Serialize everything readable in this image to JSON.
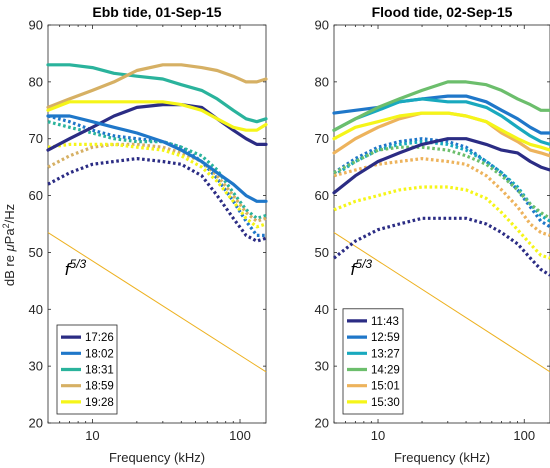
{
  "figure": {
    "y_axis_label_prefix": "dB re ",
    "y_axis_label_mu": "μ",
    "y_axis_label_pa": "Pa",
    "y_axis_label_sup": "2",
    "y_axis_label_suffix": "/Hz"
  },
  "chart_data": [
    {
      "type": "line",
      "title": "Ebb tide, 01-Sep-15",
      "xlabel": "Frequency (kHz)",
      "ylabel": "dB re μPa²/Hz",
      "xscale": "log",
      "xlim": [
        5,
        150
      ],
      "ylim": [
        20,
        90
      ],
      "xticks": [
        10,
        100
      ],
      "yticks": [
        20,
        30,
        40,
        50,
        60,
        70,
        80,
        90
      ],
      "grid": false,
      "legend_position": "bottom-left",
      "annotation": {
        "text": "f",
        "superscript": "5/3",
        "x": 6.5,
        "y": 46
      },
      "reference_line": {
        "color": "#EDB120",
        "x": [
          5,
          150
        ],
        "y": [
          53.5,
          29
        ]
      },
      "series": [
        {
          "name": "17:26",
          "color": "#2B2C84",
          "solid": {
            "x": [
              5,
              7,
              10,
              14,
              20,
              30,
              40,
              55,
              70,
              90,
              110,
              130,
              150
            ],
            "y": [
              68,
              70,
              72,
              74,
              75.5,
              76,
              76,
              75.5,
              73.5,
              71.5,
              70,
              69,
              69
            ]
          },
          "dotted": {
            "x": [
              5,
              7,
              10,
              14,
              20,
              30,
              40,
              55,
              70,
              90,
              110,
              130,
              150
            ],
            "y": [
              62,
              64,
              65.5,
              66,
              66.5,
              66,
              65.5,
              63.5,
              60,
              56,
              53,
              52,
              52.5
            ]
          }
        },
        {
          "name": "18:02",
          "color": "#1F77C9",
          "solid": {
            "x": [
              5,
              7,
              10,
              14,
              20,
              30,
              40,
              55,
              70,
              90,
              110,
              130,
              150
            ],
            "y": [
              74,
              74,
              73,
              72,
              71,
              69.5,
              68,
              66,
              64,
              62,
              60,
              59,
              59
            ]
          },
          "dotted": {
            "x": [
              5,
              7,
              10,
              14,
              20,
              30,
              40,
              55,
              70,
              90,
              110,
              130,
              150
            ],
            "y": [
              74,
              73,
              71.5,
              70.5,
              70,
              69.5,
              68.5,
              66,
              63,
              59,
              55.5,
              53,
              53
            ]
          }
        },
        {
          "name": "18:31",
          "color": "#2AB39C",
          "solid": {
            "x": [
              5,
              7,
              10,
              14,
              20,
              30,
              40,
              55,
              70,
              90,
              110,
              130,
              150
            ],
            "y": [
              83,
              83,
              82.5,
              81.5,
              81,
              80.5,
              79.5,
              78.5,
              77,
              75,
              73.5,
              73,
              73.5
            ]
          },
          "dotted": {
            "x": [
              5,
              7,
              10,
              14,
              20,
              30,
              40,
              55,
              70,
              90,
              110,
              130,
              150
            ],
            "y": [
              73,
              72,
              71,
              70,
              69.5,
              69.5,
              68.5,
              67,
              64.5,
              60.5,
              57.5,
              56,
              56.5
            ]
          }
        },
        {
          "name": "18:59",
          "color": "#D6B064",
          "solid": {
            "x": [
              5,
              7,
              10,
              14,
              20,
              30,
              40,
              55,
              70,
              90,
              110,
              130,
              150
            ],
            "y": [
              75.5,
              77,
              78.5,
              80,
              82,
              83,
              83,
              82.5,
              82,
              81,
              80,
              80,
              80.5
            ]
          },
          "dotted": {
            "x": [
              5,
              7,
              10,
              14,
              20,
              30,
              40,
              55,
              70,
              90,
              110,
              130,
              150
            ],
            "y": [
              65,
              67,
              68.5,
              69,
              69,
              68.5,
              67.5,
              66,
              63.5,
              60,
              57,
              55.5,
              56
            ]
          }
        },
        {
          "name": "19:28",
          "color": "#F5F519",
          "solid": {
            "x": [
              5,
              7,
              10,
              14,
              20,
              30,
              40,
              55,
              70,
              90,
              110,
              130,
              150
            ],
            "y": [
              75,
              76.5,
              76.5,
              76.5,
              76.5,
              76.5,
              76,
              75,
              73.5,
              72,
              71.5,
              71.5,
              72.5
            ]
          },
          "dotted": {
            "x": [
              5,
              7,
              10,
              14,
              20,
              30,
              40,
              55,
              70,
              90,
              110,
              130,
              150
            ],
            "y": [
              68.5,
              69,
              69,
              69,
              68.5,
              68,
              67,
              65,
              62.5,
              59,
              56,
              54.5,
              55
            ]
          }
        }
      ]
    },
    {
      "type": "line",
      "title": "Flood tide, 02-Sep-15",
      "xlabel": "Frequency (kHz)",
      "ylabel": "",
      "xscale": "log",
      "xlim": [
        5,
        150
      ],
      "ylim": [
        20,
        90
      ],
      "xticks": [
        10,
        100
      ],
      "yticks": [
        20,
        30,
        40,
        50,
        60,
        70,
        80,
        90
      ],
      "grid": false,
      "legend_position": "bottom-left",
      "annotation": {
        "text": "f",
        "superscript": "5/3",
        "x": 6.5,
        "y": 46
      },
      "reference_line": {
        "color": "#EDB120",
        "x": [
          5,
          150
        ],
        "y": [
          53.5,
          29
        ]
      },
      "series": [
        {
          "name": "11:43",
          "color": "#2B2C84",
          "solid": {
            "x": [
              5,
              7,
              10,
              14,
              20,
              30,
              40,
              55,
              70,
              90,
              110,
              130,
              150
            ],
            "y": [
              60.5,
              63.5,
              66,
              67.5,
              69,
              70,
              70,
              69,
              68,
              67.5,
              66,
              65,
              64.5
            ]
          },
          "dotted": {
            "x": [
              5,
              7,
              10,
              14,
              20,
              30,
              40,
              55,
              70,
              90,
              110,
              130,
              150
            ],
            "y": [
              49,
              52,
              54,
              55,
              56,
              56,
              56,
              55,
              53.5,
              51.5,
              49,
              47,
              46
            ]
          }
        },
        {
          "name": "12:59",
          "color": "#1F77C9",
          "solid": {
            "x": [
              5,
              7,
              10,
              14,
              20,
              30,
              40,
              55,
              70,
              90,
              110,
              130,
              150
            ],
            "y": [
              74.5,
              75,
              75.5,
              76.5,
              77,
              77.5,
              77.5,
              76.5,
              75,
              73.5,
              72,
              71,
              71
            ]
          },
          "dotted": {
            "x": [
              5,
              7,
              10,
              14,
              20,
              30,
              40,
              55,
              70,
              90,
              110,
              130,
              150
            ],
            "y": [
              64,
              66.5,
              68.5,
              69.5,
              70,
              69.5,
              68.5,
              66,
              64,
              61,
              58,
              55.5,
              54.5
            ]
          }
        },
        {
          "name": "13:27",
          "color": "#19A9BE",
          "solid": {
            "x": [
              5,
              7,
              10,
              14,
              20,
              30,
              40,
              55,
              70,
              90,
              110,
              130,
              150
            ],
            "y": [
              71.5,
              73.5,
              75,
              76.5,
              77,
              76.5,
              76.5,
              75.5,
              74,
              72,
              70.5,
              69.5,
              69
            ]
          },
          "dotted": {
            "x": [
              5,
              7,
              10,
              14,
              20,
              30,
              40,
              55,
              70,
              90,
              110,
              130,
              150
            ],
            "y": [
              63.5,
              66,
              68,
              69,
              69.5,
              69,
              68,
              66,
              64,
              61.5,
              58.5,
              56.5,
              55.5
            ]
          }
        },
        {
          "name": "14:29",
          "color": "#6CBE6C",
          "solid": {
            "x": [
              5,
              7,
              10,
              14,
              20,
              30,
              40,
              55,
              70,
              90,
              110,
              130,
              150
            ],
            "y": [
              71.5,
              73.5,
              75.5,
              77,
              78.5,
              80,
              80,
              79.5,
              78.5,
              77,
              76,
              75,
              75
            ]
          },
          "dotted": {
            "x": [
              5,
              7,
              10,
              14,
              20,
              30,
              40,
              55,
              70,
              90,
              110,
              130,
              150
            ],
            "y": [
              64,
              66,
              68,
              68.5,
              68.5,
              68,
              67,
              65.5,
              63.5,
              61,
              58.5,
              57,
              56
            ]
          }
        },
        {
          "name": "15:01",
          "color": "#EDB35C",
          "solid": {
            "x": [
              5,
              7,
              10,
              14,
              20,
              30,
              40,
              55,
              70,
              90,
              110,
              130,
              150
            ],
            "y": [
              67.5,
              70,
              72,
              73.5,
              74.5,
              74.5,
              74,
              73,
              71,
              69.5,
              68,
              67.5,
              67
            ]
          },
          "dotted": {
            "x": [
              5,
              7,
              10,
              14,
              20,
              30,
              40,
              55,
              70,
              90,
              110,
              130,
              150
            ],
            "y": [
              63.5,
              64.5,
              65.5,
              66,
              66.5,
              66,
              65.5,
              63.5,
              61,
              58,
              55,
              53.5,
              53
            ]
          }
        },
        {
          "name": "15:30",
          "color": "#F5F519",
          "solid": {
            "x": [
              5,
              7,
              10,
              14,
              20,
              30,
              40,
              55,
              70,
              90,
              110,
              130,
              150
            ],
            "y": [
              70,
              72,
              73,
              74,
              74.5,
              74.5,
              74,
              73,
              71.5,
              70,
              69,
              68.5,
              68
            ]
          },
          "dotted": {
            "x": [
              5,
              7,
              10,
              14,
              20,
              30,
              40,
              55,
              70,
              90,
              110,
              130,
              150
            ],
            "y": [
              57.5,
              59,
              60,
              61,
              61.5,
              61.5,
              61,
              59.5,
              57,
              54,
              51.5,
              49.5,
              49
            ]
          }
        }
      ]
    }
  ]
}
